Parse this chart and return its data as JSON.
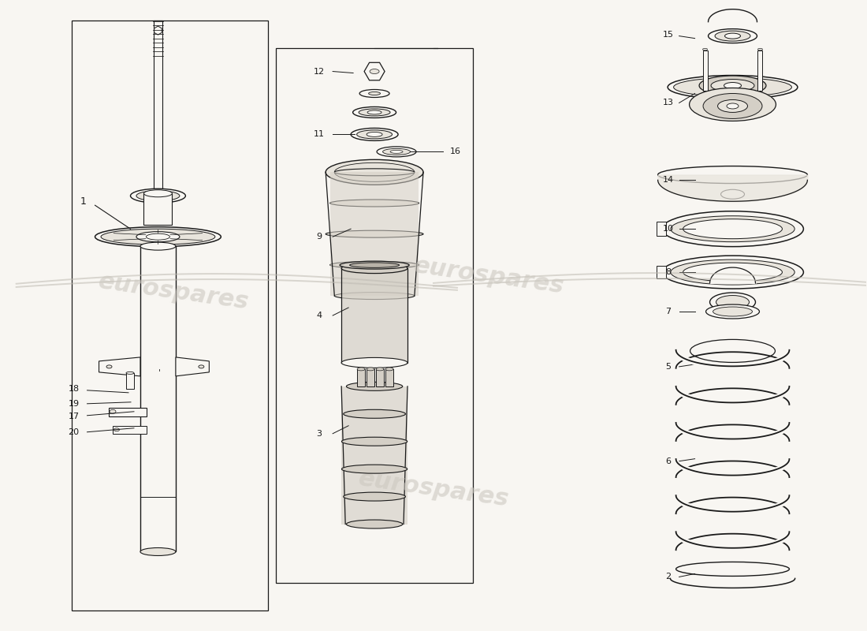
{
  "background_color": "#f8f6f2",
  "line_color": "#1a1a1a",
  "fill_light": "#e8e4dc",
  "fill_medium": "#d4cfc6",
  "fill_dark": "#b8b2a8",
  "watermark_color": "#ccc8c0",
  "watermark_text": "eurospares"
}
